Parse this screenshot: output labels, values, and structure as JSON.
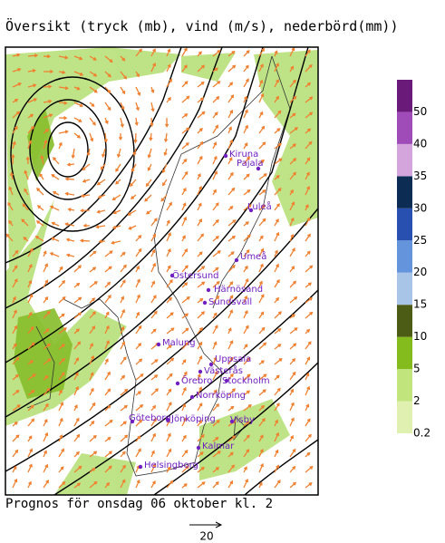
{
  "title": "Översikt (tryck (mb), vind (m/s), nederbörd(mm))",
  "footer": "Prognos för onsdag 06 oktober kl. 2",
  "wind_scale": "20",
  "legend": {
    "ticks": [
      0.2,
      2,
      5,
      10,
      15,
      20,
      25,
      30,
      35,
      40,
      50
    ],
    "colors": [
      "#e0f0b0",
      "#c2e47c",
      "#84bc1e",
      "#4c5c14",
      "#a8c4e6",
      "#6494dc",
      "#2850b0",
      "#0c2c54",
      "#d4a4dc",
      "#a04cb8",
      "#6a1a78"
    ]
  },
  "cities": [
    "Kiruna",
    "Pajala",
    "Luleå",
    "Umeå",
    "Östersund",
    "Härnösand",
    "Sundsvall",
    "Malung",
    "Uppsala",
    "Västerås",
    "Örebro",
    "Stockholm",
    "Norrköping",
    "Göteborg",
    "Jönköping",
    "Visby",
    "Kalmar",
    "Helsingborg"
  ],
  "city_color": "#7020c0",
  "wind_color": "#f08030"
}
